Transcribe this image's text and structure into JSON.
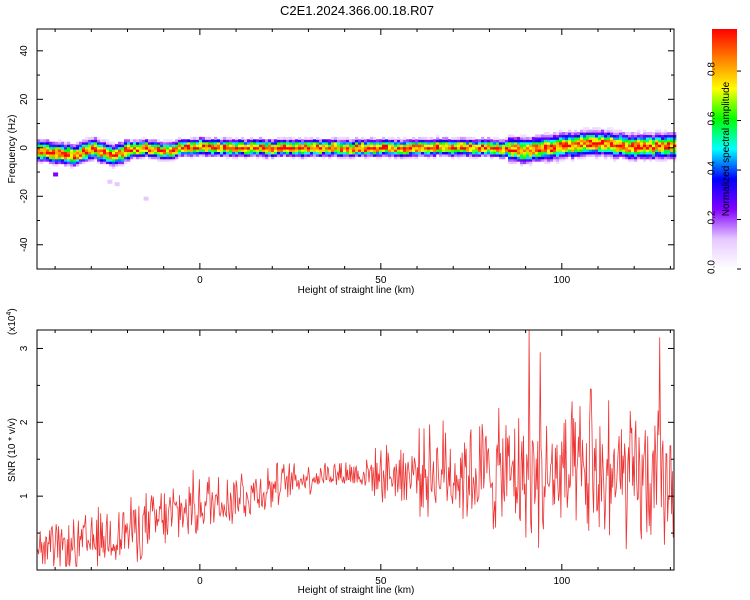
{
  "page": {
    "title": "C2E1.2024.366.00.18.R07"
  },
  "chart_data": [
    {
      "type": "heatmap",
      "xlabel": "Height of straight line (km)",
      "ylabel": "Frequency (Hz)",
      "xlim": [
        -45,
        131
      ],
      "ylim": [
        -50,
        49
      ],
      "xticks": [
        0,
        50,
        100
      ],
      "yticks": [
        -40,
        -20,
        0,
        20,
        40
      ],
      "colorbar": {
        "label": "Normalized spectral amplitude",
        "range": [
          0,
          0.97
        ],
        "ticks": [
          "0.0",
          "0.2",
          "0.4",
          "0.6",
          "0.8"
        ],
        "tick_values": [
          0,
          0.2,
          0.4,
          0.6,
          0.8
        ],
        "colors": [
          "#ffffff",
          "#e6c8ff",
          "#8000ff",
          "#0000ff",
          "#00ffff",
          "#00ff00",
          "#ffff00",
          "#ff8000",
          "#ff0000"
        ]
      },
      "ridge": {
        "x": [
          -45,
          -40,
          -35,
          -30,
          -25,
          -20,
          -15,
          -10,
          -5,
          0,
          10,
          20,
          30,
          40,
          50,
          60,
          70,
          80,
          90,
          100,
          110,
          120,
          131
        ],
        "frequency": [
          -1,
          -2,
          -3,
          0,
          -3,
          -1,
          0,
          -1,
          0,
          0.5,
          0,
          0,
          0,
          0,
          0,
          0,
          0.5,
          0,
          -1,
          1,
          2,
          0.5,
          1
        ]
      },
      "scattered_points": [
        {
          "x": -40,
          "frequency": -11
        },
        {
          "x": -25,
          "frequency": -14
        },
        {
          "x": -23,
          "frequency": -15
        },
        {
          "x": -15,
          "frequency": -21
        }
      ]
    },
    {
      "type": "line",
      "xlabel": "Height of straight line (km)",
      "ylabel": "SNR (10 * v/v)",
      "multiplier": "(x10",
      "multiplier_exp": "4",
      "multiplier_close": ")",
      "xlim": [
        -45,
        131
      ],
      "ylim": [
        0,
        3.25
      ],
      "xticks": [
        0,
        50,
        100
      ],
      "yticks": [
        1,
        2,
        3
      ],
      "color": "#ee3333",
      "trend": {
        "x": [
          -45,
          -35,
          -25,
          -15,
          -5,
          5,
          15,
          25,
          35,
          45,
          55,
          65,
          75,
          85,
          95,
          105,
          115,
          125,
          131
        ],
        "mean": [
          0.25,
          0.3,
          0.45,
          0.6,
          0.8,
          0.95,
          1.05,
          1.2,
          1.3,
          1.3,
          1.3,
          1.35,
          1.3,
          1.3,
          1.25,
          1.25,
          1.2,
          1.2,
          1.2
        ],
        "spread": [
          0.25,
          0.3,
          0.35,
          0.35,
          0.35,
          0.35,
          0.3,
          0.2,
          0.15,
          0.2,
          0.35,
          0.5,
          0.6,
          0.65,
          0.7,
          0.75,
          0.75,
          0.75,
          0.75
        ]
      },
      "peaks": [
        {
          "x": 91,
          "y": 3.25
        },
        {
          "x": 94,
          "y": 2.95
        },
        {
          "x": 127,
          "y": 3.15
        },
        {
          "x": 108,
          "y": 2.45
        },
        {
          "x": 113,
          "y": 2.3
        }
      ],
      "sample_step": 0.22
    }
  ]
}
